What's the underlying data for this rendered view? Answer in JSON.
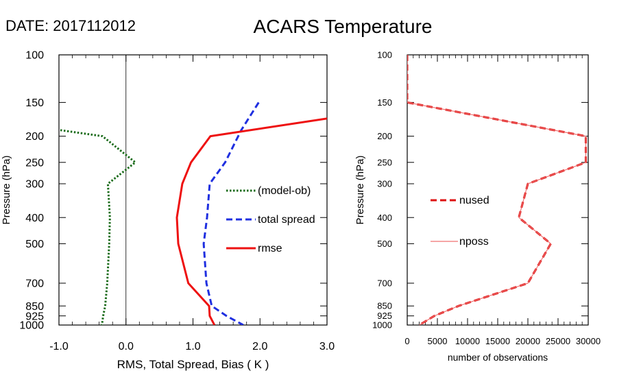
{
  "date_label": "DATE: 2017112012",
  "title": "ACARS Temperature",
  "chart_data": [
    {
      "type": "line",
      "ylabel": "Pressure (hPa)",
      "xlabel": "RMS, Total Spread, Bias ( K )",
      "y_scale": "log",
      "y_reversed": true,
      "ylim": [
        1000,
        100
      ],
      "xlim": [
        -1.0,
        3.0
      ],
      "x_ticks": [
        -1.0,
        0.0,
        1.0,
        2.0,
        3.0
      ],
      "x_tick_labels": [
        "-1.0",
        "0.0",
        "1.0",
        "2.0",
        "3.0"
      ],
      "y_ticks": [
        100,
        150,
        200,
        250,
        300,
        400,
        500,
        700,
        850,
        925,
        1000
      ],
      "y_tick_labels": [
        "100",
        "150",
        "200",
        "250",
        "300",
        "400",
        "500",
        "700",
        "850",
        "925",
        "1000"
      ],
      "zero_line": 0,
      "legend_position": "right-center",
      "series": [
        {
          "name": "(model-ob)",
          "style": "dotted",
          "color": "#1a6b1a",
          "x": [
            -0.98,
            -0.35,
            0.14,
            -0.27,
            -0.24,
            -0.25,
            -0.28,
            -0.31,
            -0.34,
            -0.36,
            -0.37
          ],
          "y": [
            190,
            200,
            250,
            300,
            400,
            500,
            700,
            850,
            925,
            1000,
            1000
          ]
        },
        {
          "name": "total spread",
          "style": "dashed",
          "color": "#1f2fe0",
          "x": [
            1.98,
            1.72,
            1.48,
            1.25,
            1.21,
            1.16,
            1.2,
            1.28,
            1.5,
            1.75
          ],
          "y": [
            150,
            190,
            250,
            300,
            400,
            500,
            700,
            850,
            925,
            1000
          ]
        },
        {
          "name": "rmse",
          "style": "solid",
          "color": "#ee1111",
          "x": [
            3.0,
            1.26,
            0.97,
            0.84,
            0.76,
            0.78,
            0.93,
            1.24,
            1.25,
            1.32
          ],
          "y": [
            172,
            200,
            250,
            300,
            400,
            500,
            700,
            850,
            925,
            1000
          ]
        }
      ]
    },
    {
      "type": "line",
      "ylabel": "Pressure (hPa)",
      "xlabel": "number of observations",
      "y_scale": "log",
      "y_reversed": true,
      "ylim": [
        1000,
        100
      ],
      "xlim": [
        0,
        30000
      ],
      "x_ticks": [
        0,
        5000,
        10000,
        15000,
        20000,
        25000,
        30000
      ],
      "x_tick_labels": [
        "0",
        "5000",
        "10000",
        "15000",
        "20000",
        "25000",
        "30000"
      ],
      "y_ticks": [
        100,
        150,
        200,
        250,
        300,
        400,
        500,
        700,
        850,
        925,
        1000
      ],
      "y_tick_labels": [
        "100",
        "150",
        "200",
        "250",
        "300",
        "400",
        "500",
        "700",
        "850",
        "925",
        "1000"
      ],
      "legend_position": "left-center",
      "series": [
        {
          "name": "nused",
          "style": "dashed",
          "color": "#dd1111",
          "x": [
            0,
            0,
            29600,
            29600,
            20000,
            18500,
            23800,
            20000,
            8500,
            4500,
            2000
          ],
          "y": [
            100,
            150,
            200,
            250,
            300,
            400,
            500,
            700,
            850,
            925,
            1000
          ]
        },
        {
          "name": "nposs",
          "style": "solid-thin",
          "color": "#f07070",
          "x": [
            0,
            0,
            29600,
            29600,
            20000,
            18500,
            23800,
            20000,
            8500,
            4500,
            2000
          ],
          "y": [
            100,
            150,
            200,
            250,
            300,
            400,
            500,
            700,
            850,
            925,
            1000
          ]
        }
      ]
    }
  ]
}
